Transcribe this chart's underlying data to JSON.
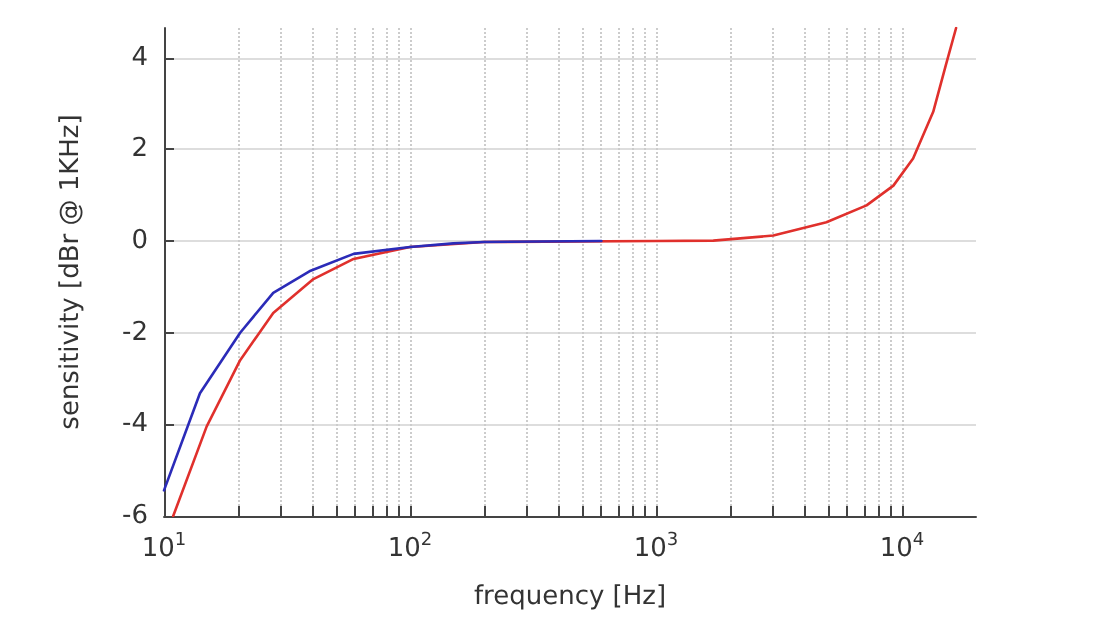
{
  "chart_data": {
    "type": "line",
    "xlabel": "frequency [Hz]",
    "ylabel": "sensitivity [dBr @ 1KHz]",
    "log": "x",
    "grid": true,
    "marker": "none",
    "xlim": [
      10,
      20000
    ],
    "ylim": [
      -6,
      4.65
    ],
    "xticks": [
      {
        "value": 10,
        "label": "10$^{1}$"
      },
      {
        "value": 20,
        "label": null
      },
      {
        "value": 30,
        "label": null
      },
      {
        "value": 40,
        "label": null
      },
      {
        "value": 50,
        "label": null
      },
      {
        "value": 60,
        "label": null
      },
      {
        "value": 70,
        "label": null
      },
      {
        "value": 80,
        "label": null
      },
      {
        "value": 90,
        "label": null
      },
      {
        "value": 100,
        "label": "10$^{2}$"
      },
      {
        "value": 200,
        "label": null
      },
      {
        "value": 300,
        "label": null
      },
      {
        "value": 400,
        "label": null
      },
      {
        "value": 500,
        "label": null
      },
      {
        "value": 600,
        "label": null
      },
      {
        "value": 700,
        "label": null
      },
      {
        "value": 800,
        "label": null
      },
      {
        "value": 900,
        "label": null
      },
      {
        "value": 1000,
        "label": "10$^{3}$"
      },
      {
        "value": 2000,
        "label": null
      },
      {
        "value": 3000,
        "label": null
      },
      {
        "value": 4000,
        "label": null
      },
      {
        "value": 5000,
        "label": null
      },
      {
        "value": 6000,
        "label": null
      },
      {
        "value": 7000,
        "label": null
      },
      {
        "value": 8000,
        "label": null
      },
      {
        "value": 9000,
        "label": null
      },
      {
        "value": 10000,
        "label": "10$^{4}$"
      }
    ],
    "yticks": [
      -6,
      -4,
      -2,
      0,
      2,
      4
    ],
    "series": [
      {
        "color": "#2b2bb8",
        "x": [
          10,
          14,
          20.4,
          27.8,
          39,
          59,
          100,
          150,
          200,
          600
        ],
        "values": [
          -5.44,
          -3.32,
          -2.0,
          -1.13,
          -0.66,
          -0.28,
          -0.13,
          -0.05,
          -0.02,
          0
        ]
      },
      {
        "color": "#e0302c",
        "x": [
          10.9,
          14.9,
          20.4,
          27.8,
          40.5,
          59,
          100,
          200,
          1000,
          1710,
          3000,
          4930,
          7180,
          9230,
          11100,
          13400,
          15100,
          16600
        ],
        "values": [
          -6,
          -4.05,
          -2.6,
          -1.57,
          -0.83,
          -0.39,
          -0.13,
          -0.02,
          0,
          0.01,
          0.12,
          0.41,
          0.78,
          1.21,
          1.8,
          2.82,
          3.85,
          4.65
        ]
      }
    ]
  }
}
